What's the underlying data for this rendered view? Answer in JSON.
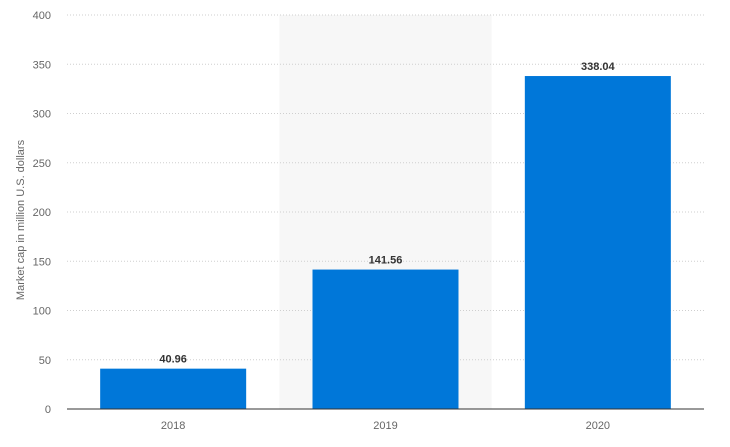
{
  "chart_data": {
    "type": "bar",
    "categories": [
      "2018",
      "2019",
      "2020"
    ],
    "values": [
      40.96,
      141.56,
      338.04
    ],
    "value_labels": [
      "40.96",
      "141.56",
      "338.04"
    ],
    "ylabel": "Market cap in million U.S. dollars",
    "xlabel": "",
    "ylim": [
      0,
      400
    ],
    "yticks": [
      0,
      50,
      100,
      150,
      200,
      250,
      300,
      350,
      400
    ],
    "grid": true,
    "highlighted_category": "2019",
    "colors": {
      "bar": "#0077d9",
      "highlight_band": "#f7f7f7",
      "grid": "#cfcfcf"
    }
  }
}
